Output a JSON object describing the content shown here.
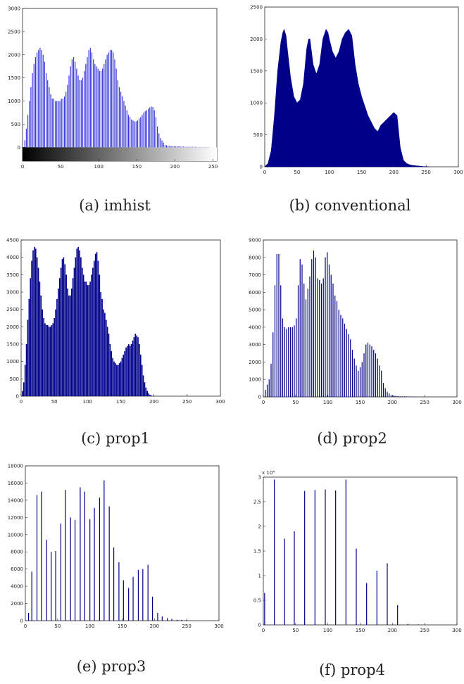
{
  "colors": {
    "bar": "#00008b",
    "imhist_bar": "#3a3adb",
    "axis": "#222222"
  },
  "charts": [
    {
      "id": "imhist",
      "caption": "(a) imhist",
      "chart_data": {
        "type": "bar",
        "style": "stem",
        "x": [
          3,
          5,
          7,
          9,
          11,
          13,
          15,
          17,
          19,
          21,
          23,
          25,
          27,
          29,
          31,
          33,
          35,
          37,
          39,
          41,
          43,
          45,
          47,
          49,
          51,
          53,
          55,
          57,
          59,
          61,
          63,
          65,
          67,
          69,
          71,
          73,
          75,
          77,
          79,
          81,
          83,
          85,
          87,
          89,
          91,
          93,
          95,
          97,
          99,
          101,
          103,
          105,
          107,
          109,
          111,
          113,
          115,
          117,
          119,
          121,
          123,
          125,
          127,
          129,
          131,
          133,
          135,
          137,
          139,
          141,
          143,
          145,
          147,
          149,
          151,
          153,
          155,
          157,
          159,
          161,
          163,
          165,
          167,
          169,
          171,
          173,
          175,
          177,
          179,
          181,
          183,
          185,
          187,
          189,
          191,
          193,
          195,
          197,
          199,
          201,
          203,
          205,
          207,
          209,
          211,
          213,
          215,
          217,
          219,
          221,
          223,
          225,
          227,
          229,
          231,
          233,
          235,
          237,
          239,
          241,
          243,
          245
        ],
        "y": [
          150,
          400,
          700,
          1000,
          1300,
          1600,
          1800,
          1950,
          2050,
          2100,
          2150,
          2100,
          2000,
          1850,
          1600,
          1450,
          1300,
          1150,
          1050,
          1050,
          1000,
          1000,
          1000,
          1000,
          1050,
          1050,
          1100,
          1200,
          1350,
          1550,
          1750,
          1900,
          1950,
          1850,
          1700,
          1550,
          1450,
          1450,
          1500,
          1650,
          1800,
          1950,
          2100,
          2150,
          2050,
          1900,
          1800,
          1750,
          1700,
          1650,
          1650,
          1700,
          1800,
          1900,
          2000,
          2050,
          2100,
          2100,
          2050,
          1900,
          1700,
          1450,
          1300,
          1200,
          1100,
          1000,
          900,
          800,
          700,
          650,
          600,
          580,
          560,
          560,
          580,
          620,
          650,
          700,
          750,
          780,
          800,
          830,
          860,
          880,
          870,
          800,
          650,
          450,
          300,
          200,
          150,
          100,
          50,
          40,
          30,
          30,
          20,
          20,
          20,
          20,
          20,
          20,
          15,
          15,
          15,
          10,
          10,
          10,
          10,
          10,
          10,
          10,
          10,
          5,
          5,
          5,
          5,
          5,
          5,
          5,
          5,
          5
        ],
        "xlim": [
          0,
          255
        ],
        "ylim": [
          -300,
          3000
        ],
        "xticks": [
          0,
          50,
          100,
          150,
          200,
          250
        ],
        "yticks": [
          0,
          500,
          1000,
          1500,
          2000,
          2500,
          3000
        ],
        "colorbar": true
      }
    },
    {
      "id": "conventional",
      "caption": "(b)  conventional",
      "chart_data": {
        "type": "area",
        "x": [
          0,
          5,
          10,
          15,
          20,
          25,
          28,
          30,
          33,
          35,
          40,
          45,
          50,
          55,
          60,
          65,
          68,
          70,
          75,
          80,
          85,
          90,
          95,
          98,
          100,
          105,
          110,
          115,
          120,
          125,
          130,
          135,
          140,
          145,
          150,
          155,
          160,
          165,
          170,
          175,
          180,
          185,
          190,
          195,
          200,
          205,
          208,
          210,
          215,
          220,
          225,
          230,
          235,
          240,
          245,
          250,
          255
        ],
        "y": [
          0,
          50,
          250,
          800,
          1500,
          1950,
          2100,
          2150,
          2050,
          1850,
          1400,
          1100,
          1000,
          1050,
          1300,
          1850,
          2000,
          2000,
          1600,
          1450,
          1600,
          2000,
          2150,
          2100,
          2000,
          1800,
          1700,
          1800,
          2000,
          2100,
          2150,
          2050,
          1600,
          1300,
          1100,
          950,
          800,
          700,
          600,
          550,
          650,
          700,
          750,
          800,
          850,
          800,
          500,
          300,
          100,
          50,
          30,
          20,
          15,
          10,
          5,
          3,
          0
        ],
        "xlim": [
          0,
          300
        ],
        "ylim": [
          0,
          2500
        ],
        "xticks": [
          0,
          50,
          100,
          150,
          200,
          250,
          300
        ],
        "yticks": [
          0,
          500,
          1000,
          1500,
          2000,
          2500
        ]
      }
    },
    {
      "id": "prop1",
      "caption": "(c) prop1",
      "chart_data": {
        "type": "bar",
        "style": "dense",
        "x": [
          2,
          4,
          6,
          8,
          10,
          12,
          14,
          16,
          18,
          20,
          22,
          24,
          26,
          28,
          30,
          32,
          34,
          36,
          38,
          40,
          42,
          44,
          46,
          48,
          50,
          52,
          54,
          56,
          58,
          60,
          62,
          64,
          66,
          68,
          70,
          72,
          74,
          76,
          78,
          80,
          82,
          84,
          86,
          88,
          90,
          92,
          94,
          96,
          98,
          100,
          102,
          104,
          106,
          108,
          110,
          112,
          114,
          116,
          118,
          120,
          122,
          124,
          126,
          128,
          130,
          132,
          134,
          136,
          138,
          140,
          142,
          144,
          146,
          148,
          150,
          152,
          154,
          156,
          158,
          160,
          162,
          164,
          166,
          168,
          170,
          172,
          174,
          176,
          178,
          180,
          182,
          184,
          186,
          188,
          190,
          192,
          194,
          196,
          198,
          200,
          202,
          204,
          206,
          208,
          210,
          212,
          214,
          216,
          218,
          220,
          222,
          224,
          226,
          228,
          230,
          232,
          234,
          236,
          238,
          240,
          242,
          244,
          246,
          248,
          250,
          252,
          254
        ],
        "y": [
          150,
          400,
          900,
          1500,
          2200,
          2800,
          3400,
          3900,
          4200,
          4300,
          4250,
          4000,
          3700,
          3300,
          2900,
          2500,
          2250,
          2100,
          2050,
          2050,
          2000,
          2000,
          2050,
          2100,
          2250,
          2500,
          2800,
          3100,
          3400,
          3700,
          3950,
          4000,
          3800,
          3500,
          3100,
          2900,
          2900,
          3100,
          3400,
          3700,
          4000,
          4250,
          4300,
          4200,
          4000,
          3700,
          3500,
          3300,
          3300,
          3200,
          3200,
          3300,
          3500,
          3700,
          3900,
          4100,
          4150,
          3900,
          3500,
          3000,
          2800,
          2500,
          2400,
          2200,
          2000,
          1800,
          1500,
          1300,
          1100,
          1000,
          950,
          900,
          900,
          950,
          1000,
          1100,
          1200,
          1300,
          1400,
          1450,
          1500,
          1450,
          1500,
          1600,
          1700,
          1800,
          1750,
          1700,
          1500,
          1200,
          900,
          600,
          400,
          250,
          150,
          80,
          40,
          20,
          10,
          5,
          0,
          0,
          0,
          0,
          0,
          0,
          0,
          0,
          0,
          0,
          0,
          0,
          0,
          0,
          0,
          0,
          0,
          0,
          0,
          0,
          0,
          0,
          0,
          0,
          0,
          0,
          0
        ],
        "xlim": [
          0,
          300
        ],
        "ylim": [
          0,
          4500
        ],
        "xticks": [
          0,
          50,
          100,
          150,
          200,
          250,
          300
        ],
        "yticks": [
          0,
          500,
          1000,
          1500,
          2000,
          2500,
          3000,
          3500,
          4000,
          4500
        ]
      }
    },
    {
      "id": "prop2",
      "caption": "(d) prop2",
      "chart_data": {
        "type": "bar",
        "style": "stem",
        "x": [
          3,
          6,
          9,
          12,
          15,
          18,
          21,
          24,
          27,
          30,
          33,
          36,
          39,
          42,
          45,
          48,
          51,
          54,
          57,
          60,
          63,
          66,
          69,
          72,
          75,
          78,
          81,
          84,
          87,
          90,
          93,
          96,
          99,
          102,
          105,
          108,
          111,
          114,
          117,
          120,
          123,
          126,
          129,
          132,
          135,
          138,
          141,
          144,
          147,
          150,
          153,
          156,
          159,
          162,
          165,
          168,
          171,
          174,
          177,
          180,
          183,
          186,
          189,
          192,
          195,
          198,
          201,
          204,
          207,
          210,
          213,
          216,
          219,
          222,
          225,
          228,
          231,
          234,
          237
        ],
        "y": [
          400,
          700,
          1000,
          1900,
          3700,
          6400,
          8200,
          8200,
          6400,
          4500,
          4000,
          3900,
          4000,
          4000,
          4000,
          4100,
          4500,
          6400,
          7900,
          7600,
          6500,
          5600,
          6200,
          6900,
          7900,
          8400,
          8000,
          6800,
          6700,
          6500,
          6800,
          8000,
          8300,
          7600,
          7000,
          6500,
          5800,
          5500,
          5000,
          4700,
          4500,
          4200,
          3900,
          3600,
          3300,
          2700,
          2200,
          1800,
          1500,
          1700,
          2000,
          2500,
          3000,
          3100,
          3000,
          2900,
          2700,
          2500,
          2200,
          1800,
          1500,
          800,
          500,
          300,
          200,
          100,
          80,
          60,
          50,
          40,
          40,
          30,
          30,
          30,
          20,
          20,
          20,
          20,
          10
        ],
        "xlim": [
          0,
          300
        ],
        "ylim": [
          0,
          9000
        ],
        "xticks": [
          0,
          50,
          100,
          150,
          200,
          250,
          300
        ],
        "yticks": [
          0,
          1000,
          2000,
          3000,
          4000,
          5000,
          6000,
          7000,
          8000,
          9000
        ]
      }
    },
    {
      "id": "prop3",
      "caption": "(e) prop3",
      "chart_data": {
        "type": "bar",
        "style": "stem",
        "x": [
          5,
          10,
          18,
          25,
          33,
          40,
          47,
          55,
          62,
          70,
          77,
          85,
          92,
          100,
          107,
          115,
          122,
          130,
          137,
          145,
          152,
          160,
          167,
          175,
          182,
          190,
          197,
          205,
          212,
          220,
          227,
          235,
          242,
          250
        ],
        "y": [
          900,
          5700,
          14600,
          15000,
          9400,
          8000,
          8100,
          11300,
          15200,
          12000,
          11700,
          15500,
          15000,
          11800,
          13100,
          14300,
          16300,
          13300,
          8500,
          6800,
          4700,
          3800,
          5100,
          5900,
          6000,
          6500,
          2800,
          900,
          500,
          300,
          200,
          100,
          100,
          80
        ],
        "xlim": [
          0,
          300
        ],
        "ylim": [
          0,
          18000
        ],
        "xticks": [
          0,
          50,
          100,
          150,
          200,
          250,
          300
        ],
        "yticks": [
          0,
          2000,
          4000,
          6000,
          8000,
          10000,
          12000,
          14000,
          16000,
          18000
        ]
      }
    },
    {
      "id": "prop4",
      "caption": "(f)  prop4",
      "exponent_label": "x 10⁴",
      "chart_data": {
        "type": "bar",
        "style": "stem",
        "x": [
          2,
          17,
          33,
          48,
          64,
          80,
          96,
          112,
          128,
          144,
          160,
          176,
          192,
          208,
          224,
          240
        ],
        "y": [
          0.65,
          2.95,
          1.75,
          1.9,
          2.72,
          2.74,
          2.75,
          2.73,
          2.95,
          1.55,
          0.85,
          1.1,
          1.25,
          0.4,
          0.02,
          0.01
        ],
        "xlim": [
          0,
          300
        ],
        "ylim": [
          0,
          3
        ],
        "xticks": [
          0,
          50,
          100,
          150,
          200,
          250,
          300
        ],
        "yticks": [
          0,
          0.5,
          1,
          1.5,
          2,
          2.5,
          3
        ],
        "ytick_labels": [
          "0",
          "0.5",
          "1",
          "1.5",
          "2",
          "2.5",
          "3"
        ]
      }
    }
  ]
}
